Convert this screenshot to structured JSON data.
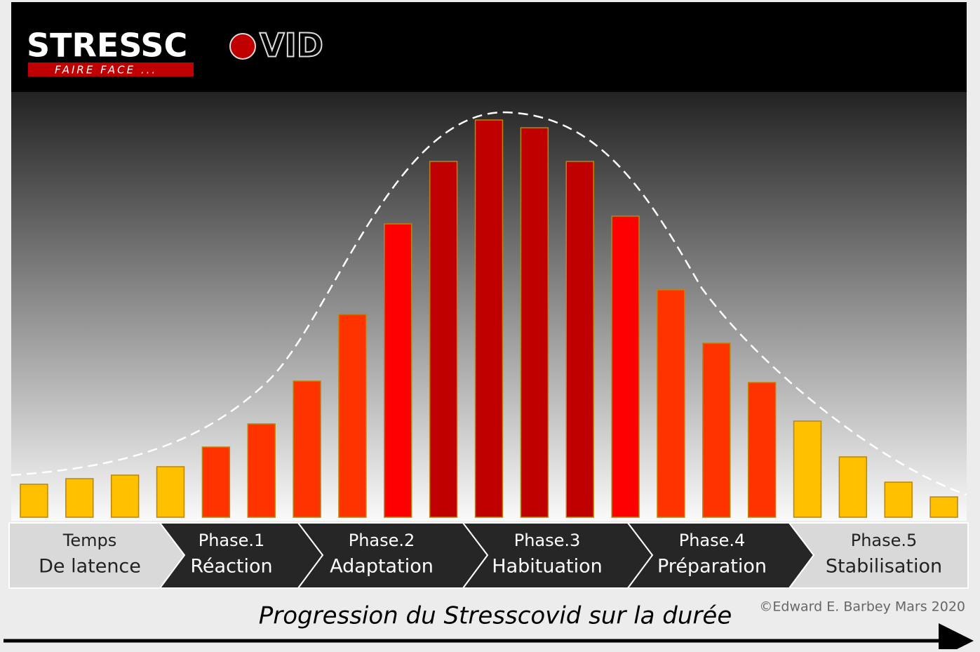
{
  "logo": {
    "parts": [
      "STRESSC",
      "VID"
    ],
    "tagline": "FAIRE FACE ..."
  },
  "chart_data": {
    "type": "bar",
    "title": "Progression du Stresscovid sur la durée",
    "values": [
      47,
      55,
      60,
      72,
      100,
      133,
      194,
      289,
      418,
      507,
      566,
      555,
      507,
      429,
      324,
      248,
      192,
      137,
      86,
      50,
      29
    ],
    "colors": [
      "#ffc000",
      "#ffc000",
      "#ffc000",
      "#ffc000",
      "#ff3300",
      "#ff3300",
      "#ff3300",
      "#ff3300",
      "#ff0000",
      "#c00000",
      "#c00000",
      "#c00000",
      "#c00000",
      "#ff0000",
      "#ff3300",
      "#ff3300",
      "#ff3300",
      "#ffc000",
      "#ffc000",
      "#ffc000",
      "#ffc000"
    ],
    "ylim": [
      0,
      600
    ]
  },
  "phases": [
    {
      "line1": "Temps",
      "line2": "De latence"
    },
    {
      "line1": "Phase.1",
      "line2": "Réaction"
    },
    {
      "line1": "Phase.2",
      "line2": "Adaptation"
    },
    {
      "line1": "Phase.3",
      "line2": "Habituation"
    },
    {
      "line1": "Phase.4",
      "line2": "Préparation"
    },
    {
      "line1": "Phase.5",
      "line2": "Stabilisation"
    }
  ],
  "credit": "©Edward E. Barbey Mars 2020"
}
